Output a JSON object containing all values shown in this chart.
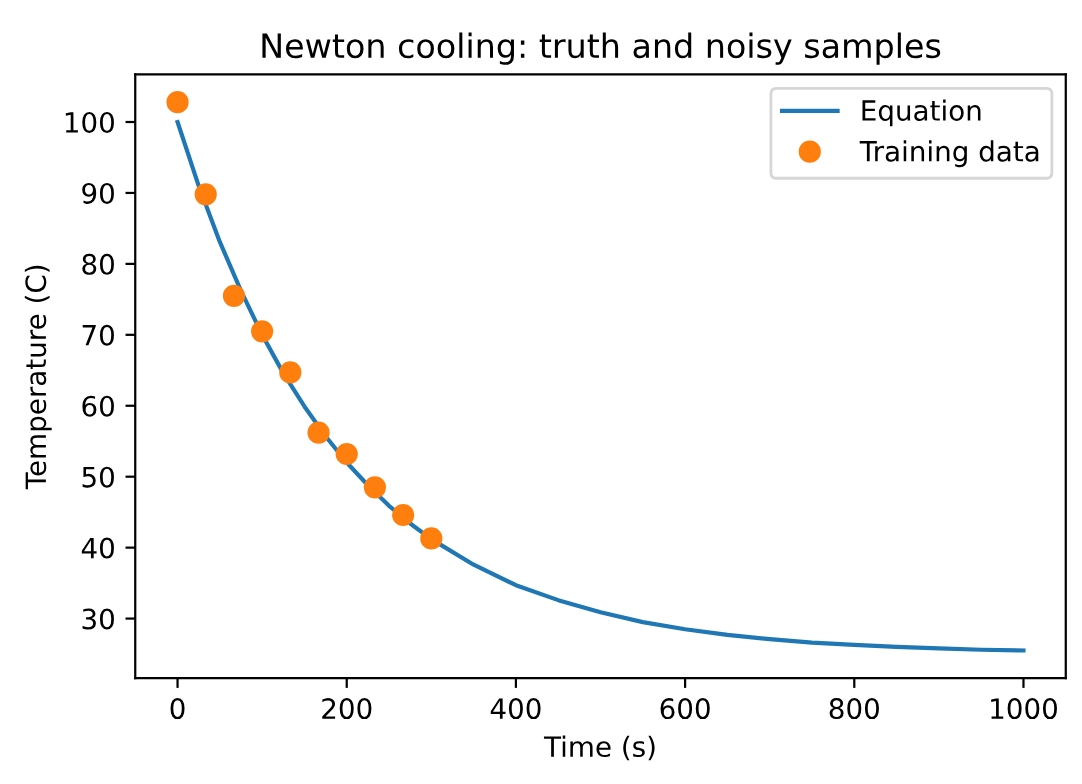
{
  "chart_data": {
    "type": "line",
    "title": "Newton cooling: truth and noisy samples",
    "xlabel": "Time (s)",
    "ylabel": "Temperature (C)",
    "xlim": [
      -50,
      1050
    ],
    "xticks": [
      0,
      200,
      400,
      600,
      800,
      1000
    ],
    "ylim": [
      21.6,
      106.7
    ],
    "yticks": [
      30,
      40,
      50,
      60,
      70,
      80,
      90,
      100
    ],
    "legend": "top right",
    "grid": false,
    "series": [
      {
        "name": "Equation",
        "color": "#1f77b4",
        "marker": "none",
        "x": [
          0,
          25,
          50,
          75,
          100,
          125,
          150,
          175,
          200,
          225,
          250,
          275,
          300,
          350,
          400,
          450,
          500,
          550,
          600,
          650,
          700,
          750,
          800,
          850,
          900,
          950,
          1000
        ],
        "values": [
          100,
          91.0,
          83.1,
          76.2,
          70.0,
          64.6,
          59.9,
          55.7,
          52.0,
          48.8,
          45.9,
          43.4,
          41.2,
          37.6,
          34.7,
          32.6,
          30.9,
          29.5,
          28.5,
          27.7,
          27.1,
          26.6,
          26.3,
          26.0,
          25.8,
          25.6,
          25.5
        ]
      },
      {
        "name": "Training data",
        "type": "scatter",
        "color": "#ff7f0e",
        "marker": "circle",
        "x": [
          0,
          33.3,
          66.7,
          100,
          133.3,
          166.7,
          200,
          233.3,
          266.7,
          300
        ],
        "values": [
          102.8,
          89.8,
          75.5,
          70.5,
          64.7,
          56.2,
          53.2,
          48.5,
          44.6,
          41.3
        ]
      }
    ]
  }
}
